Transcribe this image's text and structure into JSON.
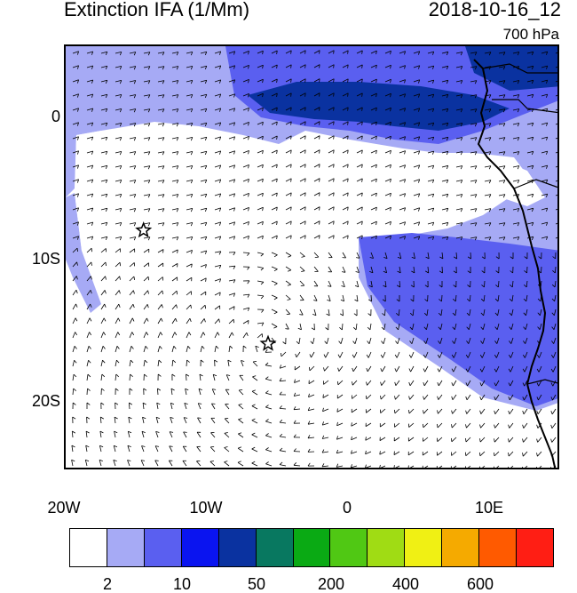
{
  "title": "Extinction IFA (1/Mm)",
  "datetime": "2018-10-16_12",
  "level": "700 hPa",
  "lat_labels": [
    "0",
    "10S",
    "20S"
  ],
  "lon_labels": [
    "20W",
    "10W",
    "0",
    "10E"
  ],
  "colorbar": {
    "colors": [
      "#ffffff",
      "#a6aaf5",
      "#5a5ff0",
      "#0a14f0",
      "#0a32a0",
      "#087860",
      "#0aaa14",
      "#50c814",
      "#a0dc14",
      "#f0f014",
      "#f5aa00",
      "#ff5a00",
      "#ff1e14"
    ],
    "labels": [
      "2",
      "10",
      "50",
      "200",
      "400",
      "600"
    ]
  },
  "markers": [
    {
      "name": "star",
      "lon": -14.5,
      "lat": -8
    },
    {
      "name": "star",
      "lon": -5.7,
      "lat": -16
    }
  ],
  "map": {
    "lon_range": [
      -20,
      15
    ],
    "lat_range": [
      -25,
      5
    ]
  }
}
